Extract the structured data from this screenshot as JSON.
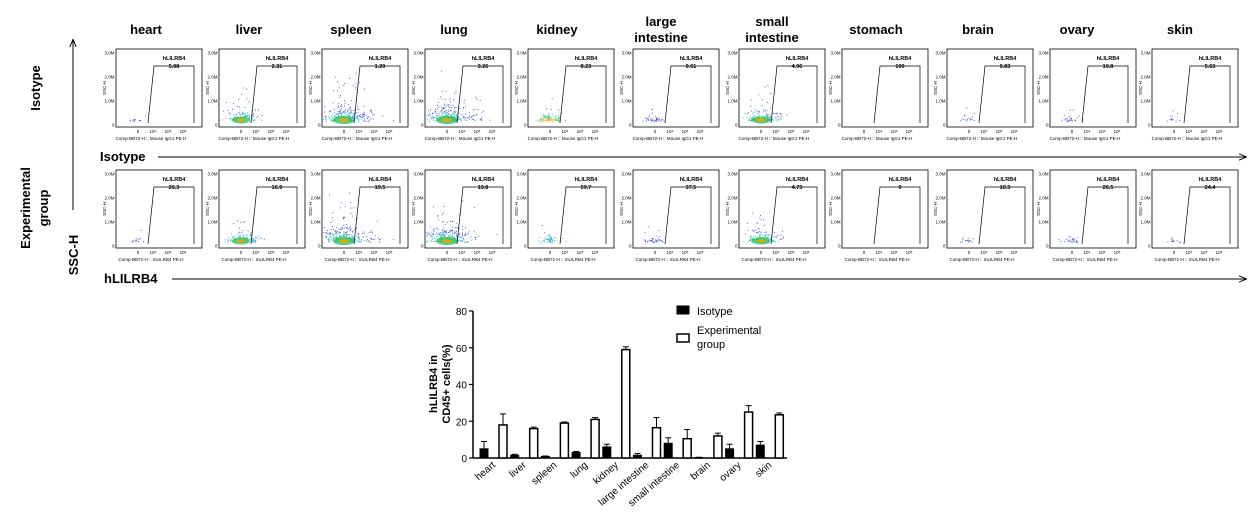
{
  "organs": [
    "heart",
    "liver",
    "spleen",
    "lung",
    "kidney",
    "large intestine",
    "small intestine",
    "stomach",
    "brain",
    "ovary",
    "skin"
  ],
  "row_labels": {
    "isotype": "Isotype",
    "experimental": "Experimental group"
  },
  "ssc_label": "SSC-H",
  "x_axis_labels": {
    "isotype": "Isotype",
    "experimental": "hLILRB4"
  },
  "flow_plot": {
    "gate_name": "hLILRB4",
    "y_axis_label": "SSC-H",
    "y_ticks": [
      "3.0M",
      "2.0M",
      "1.0M",
      "0"
    ],
    "x_ticks": [
      "0",
      "10⁴",
      "10⁵",
      "10⁶"
    ],
    "x_axis_label_isotype": "Comp-BB72-H :: Mouse IgG1 PE-H",
    "x_axis_label_experimental": "Comp-BB72-H :: mLILRB4 PE-H",
    "isotype_gate_values": [
      "5.08",
      "2.31",
      "1.20",
      "3.26",
      "8.23",
      "0.61",
      "4.96",
      "100",
      "0.83",
      "10.8",
      "5.63"
    ],
    "experimental_gate_values": [
      "26.3",
      "16.9",
      "19.5",
      "19.8",
      "59.7",
      "37.5",
      "4.73",
      "0",
      "10.3",
      "26.5",
      "24.4"
    ]
  },
  "chart_data": {
    "type": "bar",
    "categories": [
      "heart",
      "liver",
      "spleen",
      "lung",
      "kidney",
      "large intestine",
      "small intestine",
      "brain",
      "ovary",
      "skin"
    ],
    "series": [
      {
        "name": "Isotype",
        "values": [
          5,
          1.5,
          0.8,
          3,
          6,
          1.5,
          8,
          0.2,
          5,
          7
        ],
        "errors": [
          4,
          0.5,
          0.3,
          0.5,
          1.5,
          1,
          3,
          0.2,
          2.5,
          2
        ],
        "color": "#000000"
      },
      {
        "name": "Experimental group",
        "values": [
          18,
          16,
          19,
          21,
          59,
          16.5,
          10.5,
          12,
          25,
          23.5
        ],
        "errors": [
          6,
          0.8,
          0.6,
          1,
          1.5,
          5.5,
          5,
          1.5,
          3.5,
          1
        ],
        "color": "#ffffff"
      }
    ],
    "ylabel": "hLILRB4 in CD45+ cells(%)",
    "yticks": [
      0,
      20,
      40,
      60,
      80
    ],
    "ylim": [
      0,
      80
    ],
    "legend": "top-right"
  }
}
